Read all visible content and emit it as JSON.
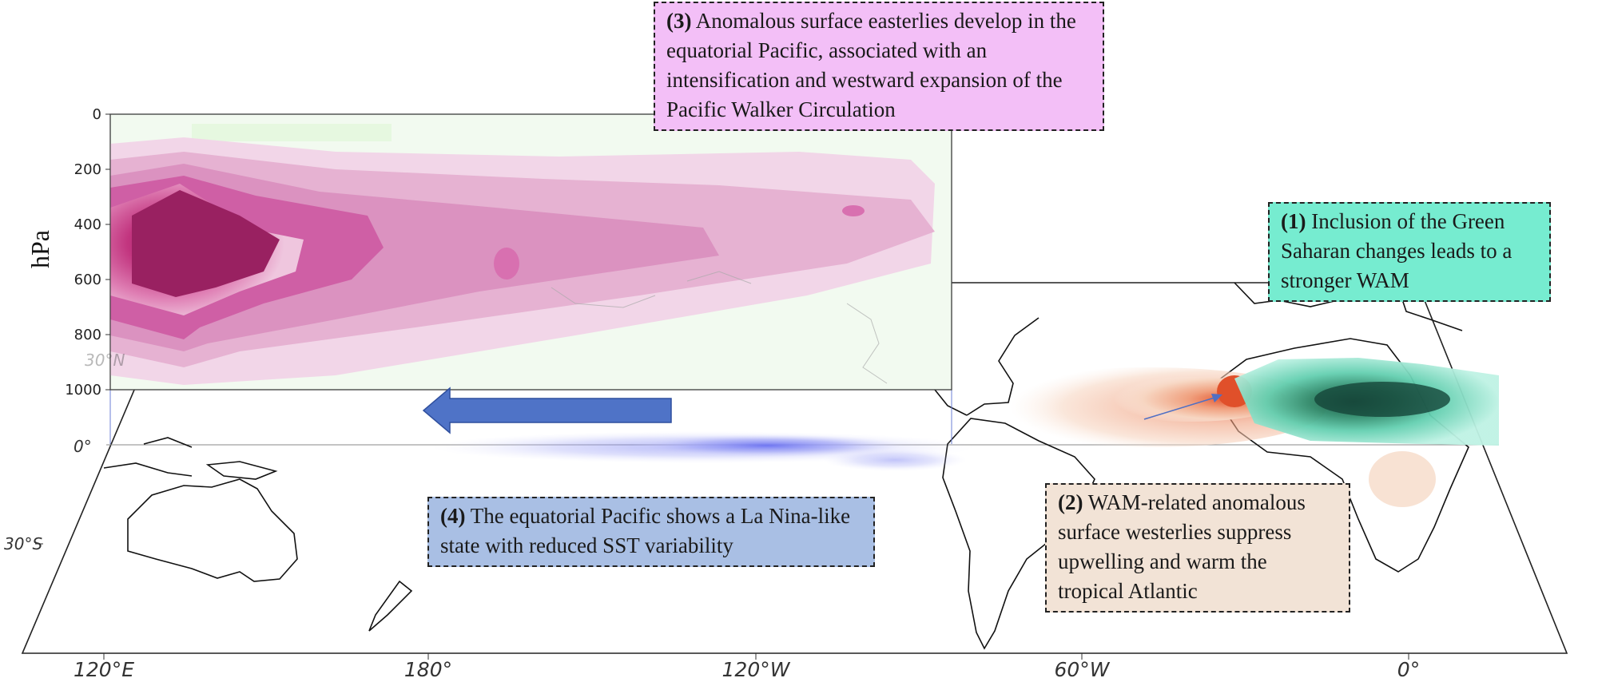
{
  "pressure_axis": {
    "unit": "hPa",
    "ticks": [
      "0",
      "200",
      "400",
      "600",
      "800",
      "1000"
    ]
  },
  "map_axes": {
    "lon_labels": [
      "120°E",
      "180°",
      "120°W",
      "60°W",
      "0°"
    ],
    "lat_labels": [
      "30°N",
      "0°",
      "30°S"
    ]
  },
  "boxes": {
    "box3": {
      "num": "(3)",
      "text": "Anomalous surface easterlies develop in the equatorial Pacific, associated with an intensification and westward expansion of the Pacific Walker Circulation"
    },
    "box1": {
      "num": "(1)",
      "text": "Inclusion of the Green Saharan changes leads to a stronger WAM"
    },
    "box2": {
      "num": "(2)",
      "text": "WAM-related anomalous surface westerlies suppress upwelling and warm the tropical Atlantic"
    },
    "box4": {
      "num": "(4)",
      "text": "The equatorial Pacific shows a La Nina-like state with reduced SST variability"
    }
  },
  "colors": {
    "walker_cell": "#c2186b",
    "sst_cool": "#5d6cf0",
    "sst_warm": "#e0502a",
    "precip_anomaly": "#1f7a5c",
    "flow_arrow": "#4f6fc4",
    "box3_bg": "#f3bff7",
    "box1_bg": "#76ecd0",
    "box2_bg": "#f2e3d6",
    "box4_bg": "#a9bfe4"
  }
}
